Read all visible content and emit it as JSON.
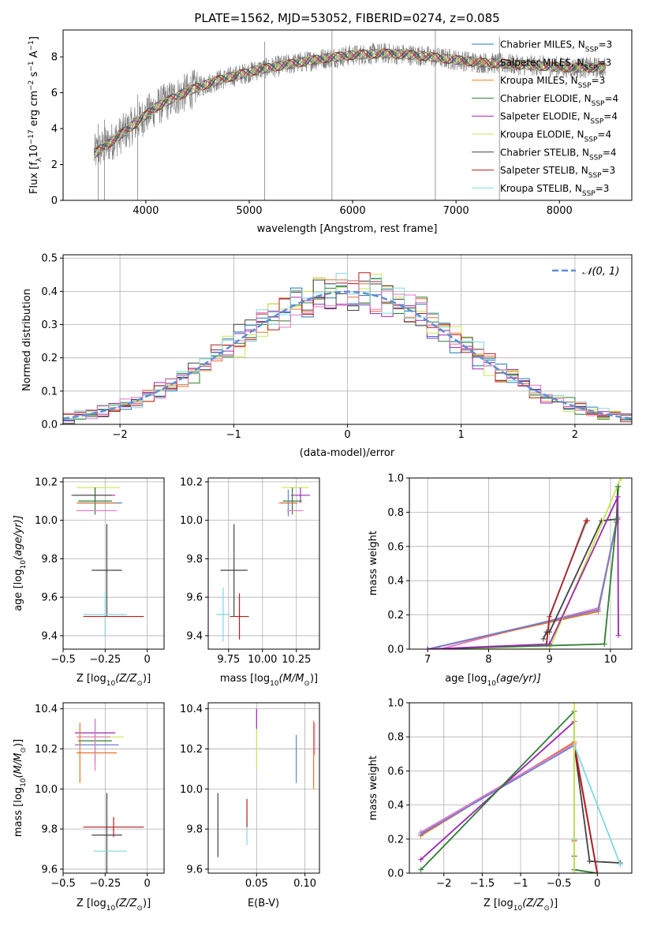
{
  "title": "PLATE=1562, MJD=53052, FIBERID=0274, z=0.085",
  "colors": {
    "Chabrier MILES": "#1f77b4",
    "Salpeter MILES": "#e8702a",
    "Kroupa MILES": "#ff7f0e",
    "Chabrier ELODIE": "#2e7d32",
    "Salpeter ELODIE": "#9c27b0",
    "Kroupa ELODIE": "#c8e64c",
    "Chabrier STELIB": "#424242",
    "Salpeter STELIB": "#b71c1c",
    "Kroupa STELIB": "#80d8e0",
    "gauss": "#5b8fd8",
    "pink": "#e377c2",
    "blue2": "#6b7fd7"
  },
  "chart_data": [
    {
      "id": "spectrum",
      "type": "line",
      "xlabel": "wavelength [Angstrom, rest frame]",
      "ylabel": "Flux [f",
      "ylabel_sub": "λ",
      "ylabel_rest": "10",
      "ylabel_sup": "−17",
      "ylabel_units": " erg cm",
      "xlim": [
        3200,
        8700
      ],
      "ylim": [
        0,
        9.5
      ],
      "xticks": [
        4000,
        5000,
        6000,
        7000,
        8000
      ],
      "yticks": [
        0,
        2,
        4,
        6,
        8
      ],
      "legend_position": "top-right",
      "legend": [
        {
          "label": "Chabrier MILES, N",
          "sub": "SSP",
          "tail": "=3",
          "color": "#1f77b4"
        },
        {
          "label": "Salpeter MILES, N",
          "sub": "SSP",
          "tail": "=3",
          "color": "#e8702a"
        },
        {
          "label": "Kroupa MILES, N",
          "sub": "SSP",
          "tail": "=3",
          "color": "#ff7f0e"
        },
        {
          "label": "Chabrier ELODIE, N",
          "sub": "SSP",
          "tail": "=4",
          "color": "#2e7d32"
        },
        {
          "label": "Salpeter ELODIE, N",
          "sub": "SSP",
          "tail": "=4",
          "color": "#9c27b0"
        },
        {
          "label": "Kroupa ELODIE, N",
          "sub": "SSP",
          "tail": "=4",
          "color": "#c8e64c"
        },
        {
          "label": "Chabrier STELIB, N",
          "sub": "SSP",
          "tail": "=4",
          "color": "#424242"
        },
        {
          "label": "Salpeter STELIB, N",
          "sub": "SSP",
          "tail": "=3",
          "color": "#b71c1c"
        },
        {
          "label": "Kroupa STELIB, N",
          "sub": "SSP",
          "tail": "=3",
          "color": "#80d8e0"
        }
      ],
      "continuum": [
        [
          3500,
          2.6
        ],
        [
          3700,
          3.4
        ],
        [
          3900,
          4.3
        ],
        [
          4100,
          5.2
        ],
        [
          4300,
          5.8
        ],
        [
          4500,
          6.3
        ],
        [
          4700,
          6.7
        ],
        [
          4900,
          7.0
        ],
        [
          5100,
          7.3
        ],
        [
          5400,
          7.6
        ],
        [
          5700,
          7.9
        ],
        [
          6000,
          8.1
        ],
        [
          6300,
          8.2
        ],
        [
          6600,
          8.1
        ],
        [
          6900,
          7.9
        ],
        [
          7200,
          7.7
        ],
        [
          7500,
          7.6
        ],
        [
          7800,
          7.5
        ],
        [
          8100,
          7.4
        ],
        [
          8400,
          7.4
        ]
      ]
    },
    {
      "id": "residuals",
      "type": "line",
      "xlabel": "(data-model)/error",
      "ylabel": "Normed distribution",
      "xlim": [
        -2.5,
        2.5
      ],
      "ylim": [
        0,
        0.51
      ],
      "xticks": [
        -2,
        -1,
        0,
        1,
        2
      ],
      "yticks": [
        0.0,
        0.1,
        0.2,
        0.3,
        0.4,
        0.5
      ],
      "legend": [
        {
          "label": "𝒩(0, 1)",
          "color": "#5b8fd8"
        }
      ],
      "legend_position": "top-right",
      "bin_width": 0.1
    },
    {
      "id": "Z-age",
      "type": "scatter",
      "xlabel": "Z [log",
      "xlabel_sub": "10",
      "xlabel_rest": "(Z/Z",
      "xlabel_sub2": "⊙",
      "xlabel_tail": ")]",
      "ylabel": "age  [log",
      "ylabel_sub": "10",
      "ylabel_tail": "(age/yr)]",
      "xlim": [
        -0.5,
        0.1
      ],
      "ylim": [
        9.33,
        10.22
      ],
      "xticks": [
        -0.5,
        -0.25,
        0.0
      ],
      "yticks": [
        9.4,
        9.6,
        9.8,
        10.0,
        10.2
      ],
      "points": [
        {
          "x": -0.24,
          "y": 9.74,
          "xerr": 0.09,
          "yerr": 0.24,
          "color": "#424242"
        },
        {
          "x": -0.25,
          "y": 9.51,
          "xerr": 0.13,
          "yerr": 0.12,
          "color": "#80d8e0"
        },
        {
          "x": -0.2,
          "y": 9.5,
          "xerr": 0.18,
          "yerr": 0.0,
          "color": "#b71c1c"
        },
        {
          "x": -0.29,
          "y": 10.17,
          "xerr": 0.13,
          "yerr": 0.0,
          "color": "#c8e64c"
        },
        {
          "x": -0.31,
          "y": 10.13,
          "xerr": 0.12,
          "yerr": 0.04,
          "color": "#9c27b0"
        },
        {
          "x": -0.31,
          "y": 10.1,
          "xerr": 0.1,
          "yerr": 0.07,
          "color": "#2e7d32"
        },
        {
          "x": -0.28,
          "y": 10.09,
          "xerr": 0.13,
          "yerr": 0.0,
          "color": "#1f77b4"
        },
        {
          "x": -0.3,
          "y": 10.09,
          "xerr": 0.12,
          "yerr": 0.0,
          "color": "#e8702a"
        },
        {
          "x": -0.3,
          "y": 10.05,
          "xerr": 0.12,
          "yerr": 0.0,
          "color": "#e377c2"
        },
        {
          "x": -0.33,
          "y": 10.13,
          "xerr": 0.12,
          "yerr": 0.0,
          "color": "#424242"
        }
      ]
    },
    {
      "id": "mass-age",
      "type": "scatter",
      "xlabel": "mass [log",
      "xlabel_sub": "10",
      "xlabel_rest": "(M/M",
      "xlabel_sub2": "⊙",
      "xlabel_tail": ")]",
      "xlim": [
        9.6,
        10.42
      ],
      "ylim": [
        9.33,
        10.22
      ],
      "xticks": [
        9.75,
        10.0,
        10.25
      ],
      "xticklabels": [
        "9.75",
        "10.00",
        "10.25"
      ],
      "yticks": [
        9.4,
        9.6,
        9.8,
        10.0,
        10.2
      ],
      "points": [
        {
          "x": 9.79,
          "y": 9.74,
          "xerr": 0.1,
          "yerr": 0.24,
          "color": "#424242"
        },
        {
          "x": 9.71,
          "y": 9.51,
          "xerr": 0.05,
          "yerr": 0.14,
          "color": "#80d8e0"
        },
        {
          "x": 9.83,
          "y": 9.5,
          "xerr": 0.07,
          "yerr": 0.12,
          "color": "#b71c1c"
        },
        {
          "x": 10.24,
          "y": 10.17,
          "xerr": 0.1,
          "yerr": 0.0,
          "color": "#c8e64c"
        },
        {
          "x": 10.28,
          "y": 10.13,
          "xerr": 0.07,
          "yerr": 0.04,
          "color": "#9c27b0"
        },
        {
          "x": 10.22,
          "y": 10.1,
          "xerr": 0.07,
          "yerr": 0.07,
          "color": "#2e7d32"
        },
        {
          "x": 10.19,
          "y": 10.09,
          "xerr": 0.06,
          "yerr": 0.07,
          "color": "#6b7fd7"
        },
        {
          "x": 10.19,
          "y": 10.09,
          "xerr": 0.07,
          "yerr": 0.0,
          "color": "#e8702a"
        },
        {
          "x": 10.24,
          "y": 10.05,
          "xerr": 0.06,
          "yerr": 0.0,
          "color": "#e377c2"
        }
      ]
    },
    {
      "id": "cum-age",
      "type": "line",
      "xlabel": "age  [log",
      "xlabel_sub": "10",
      "xlabel_tail": "(age/yr)]",
      "ylabel": "mass weight",
      "xlim": [
        6.7,
        10.35
      ],
      "ylim": [
        0,
        1.0
      ],
      "xticks": [
        7,
        8,
        9,
        10
      ],
      "yticks": [
        0.0,
        0.2,
        0.4,
        0.6,
        0.8,
        1.0
      ],
      "series": [
        {
          "color": "#e377c2",
          "x": [
            7.2,
            9.8,
            10.1,
            10.12
          ],
          "y": [
            0.0,
            0.24,
            0.74,
            0.76
          ]
        },
        {
          "color": "#e8702a",
          "x": [
            7.0,
            9.8,
            10.1,
            10.12
          ],
          "y": [
            0.0,
            0.22,
            0.74,
            0.76
          ]
        },
        {
          "color": "#6b7fd7",
          "x": [
            7.0,
            9.8,
            10.1,
            10.12
          ],
          "y": [
            0.0,
            0.23,
            0.75,
            0.77
          ]
        },
        {
          "color": "#80d8e0",
          "x": [
            8.95,
            9.0,
            9.62,
            9.6
          ],
          "y": [
            0.02,
            0.2,
            0.75,
            0.75
          ]
        },
        {
          "color": "#b71c1c",
          "x": [
            8.95,
            9.0,
            9.6,
            9.62
          ],
          "y": [
            0.03,
            0.19,
            0.75,
            0.75
          ]
        },
        {
          "color": "#424242",
          "x": [
            8.9,
            8.95,
            9.0,
            9.85,
            10.1,
            10.12
          ],
          "y": [
            0.06,
            0.1,
            0.1,
            0.75,
            0.76,
            0.95
          ]
        },
        {
          "color": "#c8e64c",
          "x": [
            7.0,
            9.0,
            10.17,
            10.18
          ],
          "y": [
            0.0,
            0.0,
            1.0,
            1.0
          ]
        },
        {
          "color": "#2e7d32",
          "x": [
            7.0,
            9.9,
            10.1,
            10.13
          ],
          "y": [
            0.0,
            0.03,
            0.76,
            0.95
          ]
        },
        {
          "color": "#9c27b0",
          "x": [
            7.0,
            9.0,
            10.12,
            10.13
          ],
          "y": [
            0.0,
            0.03,
            0.89,
            0.08
          ]
        }
      ]
    },
    {
      "id": "Z-mass",
      "type": "scatter",
      "xlabel": "Z [log",
      "xlabel_sub": "10",
      "xlabel_rest": "(Z/Z",
      "xlabel_sub2": "⊙",
      "xlabel_tail": ")]",
      "ylabel": "mass [log",
      "ylabel_sub": "10",
      "ylabel_tail": "(M/M",
      "ylabel_sub2": "⊙",
      "ylabel_end": ")]",
      "xlim": [
        -0.5,
        0.1
      ],
      "ylim": [
        9.58,
        10.43
      ],
      "xticks": [
        -0.5,
        -0.25,
        0.0
      ],
      "yticks": [
        9.6,
        9.8,
        10.0,
        10.2,
        10.4
      ],
      "points": [
        {
          "x": -0.24,
          "y": 9.77,
          "xerr": 0.09,
          "yerr": 0.21,
          "color": "#424242"
        },
        {
          "x": -0.22,
          "y": 9.69,
          "xerr": 0.1,
          "yerr": 0.0,
          "color": "#80d8e0"
        },
        {
          "x": -0.2,
          "y": 9.81,
          "xerr": 0.18,
          "yerr": 0.05,
          "color": "#b71c1c"
        },
        {
          "x": -0.27,
          "y": 10.26,
          "xerr": 0.13,
          "yerr": 0.0,
          "color": "#c8e64c"
        },
        {
          "x": -0.31,
          "y": 10.28,
          "xerr": 0.12,
          "yerr": 0.0,
          "color": "#9c27b0"
        },
        {
          "x": -0.31,
          "y": 10.24,
          "xerr": 0.1,
          "yerr": 0.11,
          "color": "#2e7d32"
        },
        {
          "x": -0.3,
          "y": 10.22,
          "xerr": 0.13,
          "yerr": 0.0,
          "color": "#6b7fd7"
        },
        {
          "x": -0.3,
          "y": 10.18,
          "xerr": 0.12,
          "yerr": 0.0,
          "color": "#e8702a"
        },
        {
          "x": -0.32,
          "y": 10.26,
          "xerr": 0.1,
          "yerr": 0.0,
          "color": "#e377c2"
        },
        {
          "x": -0.4,
          "y": 10.18,
          "xerr": 0.0,
          "yerr": 0.15,
          "color": "#e8702a"
        },
        {
          "x": -0.31,
          "y": 10.22,
          "xerr": 0.0,
          "yerr": 0.13,
          "color": "#e377c2"
        }
      ]
    },
    {
      "id": "ebv-mass",
      "type": "scatter",
      "xlabel": "E(B-V)",
      "xlim": [
        0.0,
        0.115
      ],
      "ylim": [
        9.58,
        10.43
      ],
      "xticks": [
        0.05,
        0.1
      ],
      "xticklabels": [
        "0.05",
        "0.10"
      ],
      "yticks": [
        9.6,
        9.8,
        10.0,
        10.2,
        10.4
      ],
      "points": [
        {
          "x": 0.01,
          "y": 9.82,
          "yerr": 0.16,
          "color": "#424242"
        },
        {
          "x": 0.04,
          "y": 9.79,
          "yerr": 0.07,
          "color": "#80d8e0"
        },
        {
          "x": 0.04,
          "y": 9.88,
          "yerr": 0.07,
          "color": "#b71c1c"
        },
        {
          "x": 0.05,
          "y": 10.2,
          "yerr": 0.1,
          "color": "#c8e64c"
        },
        {
          "x": 0.05,
          "y": 10.35,
          "yerr": 0.05,
          "color": "#9c27b0"
        },
        {
          "x": 0.091,
          "y": 10.15,
          "yerr": 0.12,
          "color": "#6b7fd7"
        },
        {
          "x": 0.109,
          "y": 10.17,
          "yerr": 0.17,
          "color": "#e8702a"
        },
        {
          "x": 0.11,
          "y": 10.25,
          "yerr": 0.08,
          "color": "#e377c2"
        }
      ]
    },
    {
      "id": "cum-Z",
      "type": "line",
      "xlabel": "Z [log",
      "xlabel_sub": "10",
      "xlabel_rest": "(Z/Z",
      "xlabel_sub2": "⊙",
      "xlabel_tail": ")]",
      "ylabel": "mass weight",
      "xlim": [
        -2.45,
        0.45
      ],
      "ylim": [
        0,
        1.0
      ],
      "xticks": [
        -2.0,
        -1.5,
        -1.0,
        -0.5,
        0.0
      ],
      "yticks": [
        0.0,
        0.2,
        0.4,
        0.6,
        0.8,
        1.0
      ],
      "series": [
        {
          "color": "#e8702a",
          "x": [
            -2.3,
            -0.3,
            0.0,
            0.0
          ],
          "y": [
            0.22,
            0.77,
            0.0,
            0.0
          ]
        },
        {
          "color": "#e377c2",
          "x": [
            -2.3,
            -0.3,
            0.0
          ],
          "y": [
            0.24,
            0.76,
            0.0
          ]
        },
        {
          "color": "#6b7fd7",
          "x": [
            -2.3,
            -0.3,
            0.0
          ],
          "y": [
            0.23,
            0.75,
            0.0
          ]
        },
        {
          "color": "#9c27b0",
          "x": [
            -2.3,
            -0.3,
            -0.3
          ],
          "y": [
            0.08,
            0.89,
            0.02
          ]
        },
        {
          "color": "#2e7d32",
          "x": [
            -2.3,
            -0.3,
            -0.3,
            0.0
          ],
          "y": [
            0.02,
            0.95,
            0.02,
            0.0
          ]
        },
        {
          "color": "#424242",
          "x": [
            -0.3,
            -0.3,
            -0.3,
            -0.3,
            -0.1,
            0.3
          ],
          "y": [
            0.0,
            0.1,
            0.2,
            0.75,
            0.07,
            0.06
          ]
        },
        {
          "color": "#b71c1c",
          "x": [
            -0.3,
            -0.3,
            -0.3,
            0.0
          ],
          "y": [
            0.0,
            0.19,
            0.75,
            0.0
          ]
        },
        {
          "color": "#80d8e0",
          "x": [
            -0.3,
            -0.3,
            -0.3,
            0.3
          ],
          "y": [
            0.0,
            0.2,
            0.75,
            0.05
          ]
        },
        {
          "color": "#c8e64c",
          "x": [
            -0.3,
            -0.3
          ],
          "y": [
            0.0,
            1.0
          ]
        }
      ]
    }
  ]
}
